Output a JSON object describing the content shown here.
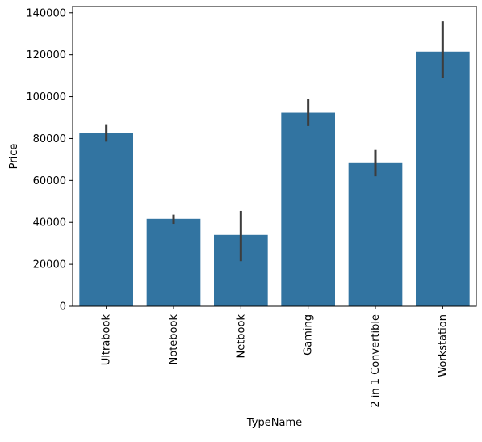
{
  "chart_data": {
    "type": "bar",
    "title": "",
    "xlabel": "TypeName",
    "ylabel": "Price",
    "ylim": [
      0,
      143000
    ],
    "yticks": [
      0,
      20000,
      40000,
      60000,
      80000,
      100000,
      120000,
      140000
    ],
    "ytick_labels": [
      "0",
      "20000",
      "40000",
      "60000",
      "80000",
      "100000",
      "120000",
      "140000"
    ],
    "categories": [
      "Ultrabook",
      "Notebook",
      "Netbook",
      "Gaming",
      "2 in 1 Convertible",
      "Workstation"
    ],
    "values": [
      82700,
      41700,
      34000,
      92300,
      68300,
      121500
    ],
    "error_low": [
      78500,
      39300,
      21500,
      86000,
      62000,
      109000
    ],
    "error_high": [
      86500,
      43700,
      45500,
      98800,
      74500,
      136000
    ],
    "bar_color": "#3274a1",
    "error_color": "#3d3d3d",
    "grid": false,
    "legend": "none"
  }
}
